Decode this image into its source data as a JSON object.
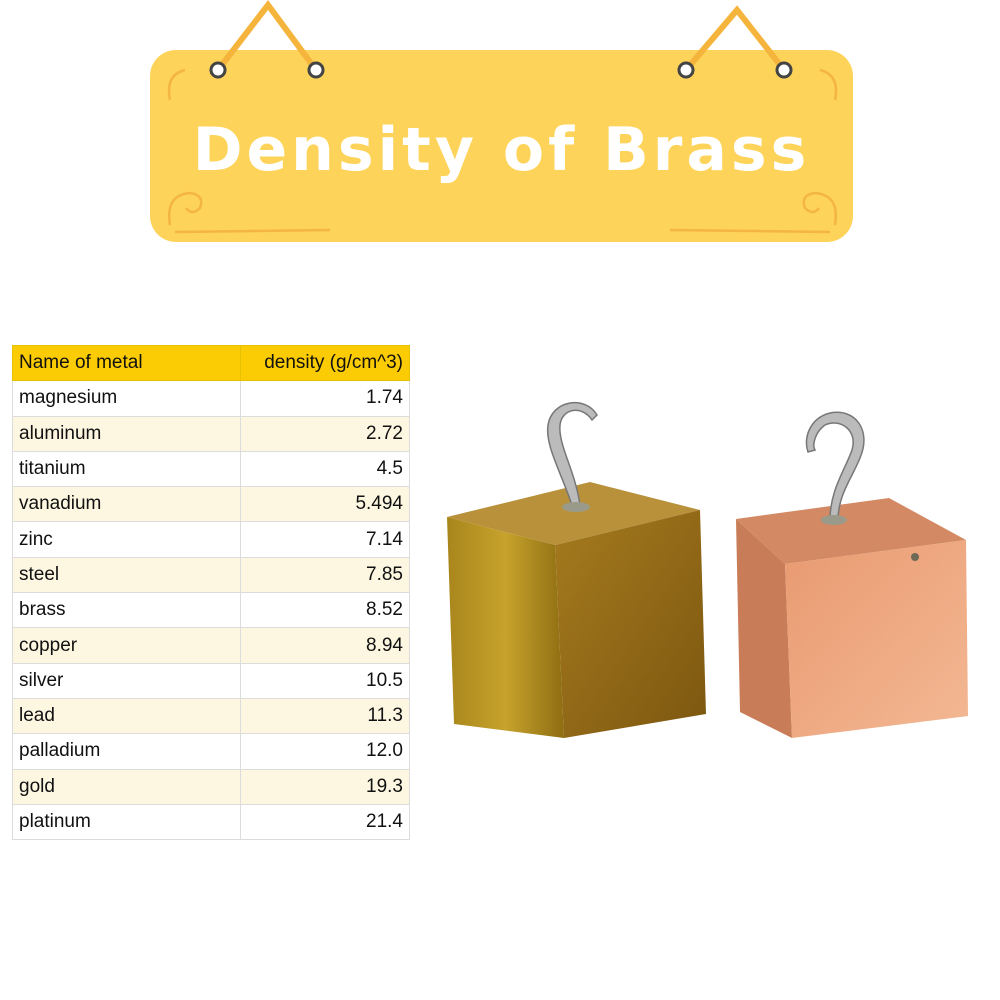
{
  "title": "Density of Brass",
  "colors": {
    "sign": "#fdd35a",
    "header": "#fbcc03",
    "alt_row": "#fdf7e2",
    "brass": "#b08a1e",
    "copper": "#e79a72"
  },
  "table": {
    "headers": [
      "Name of metal",
      "density (g/cm^3)"
    ],
    "rows": [
      {
        "name": "magnesium",
        "density": "1.74"
      },
      {
        "name": "aluminum",
        "density": "2.72"
      },
      {
        "name": "titanium",
        "density": "4.5"
      },
      {
        "name": "vanadium",
        "density": "5.494"
      },
      {
        "name": "zinc",
        "density": "7.14"
      },
      {
        "name": "steel",
        "density": "7.85"
      },
      {
        "name": "brass",
        "density": "8.52"
      },
      {
        "name": "copper",
        "density": "8.94"
      },
      {
        "name": "silver",
        "density": "10.5"
      },
      {
        "name": "lead",
        "density": "11.3"
      },
      {
        "name": "palladium",
        "density": "12.0"
      },
      {
        "name": "gold",
        "density": "19.3"
      },
      {
        "name": "platinum",
        "density": "21.4"
      }
    ]
  }
}
